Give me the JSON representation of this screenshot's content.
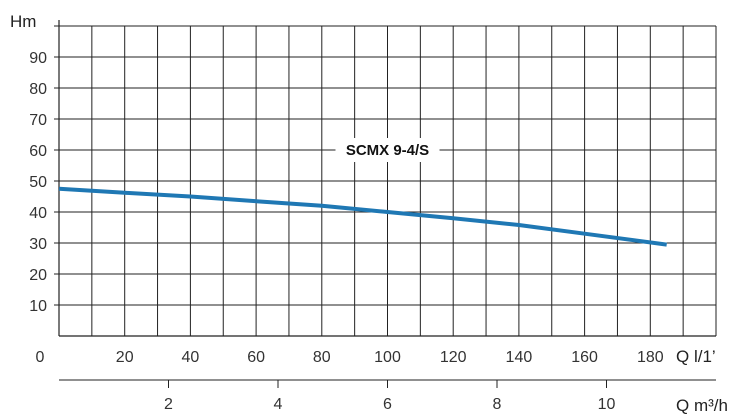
{
  "chart_data": {
    "type": "line",
    "title": "",
    "ylabel": "Hm",
    "xlabel": "Q l/1’",
    "x2label": "Q m³/h",
    "ylim": [
      0,
      100
    ],
    "xlim": [
      0,
      200
    ],
    "x2lim": [
      0,
      12
    ],
    "y_ticks": [
      10,
      20,
      30,
      40,
      50,
      60,
      70,
      80,
      90
    ],
    "x_ticks": [
      0,
      20,
      40,
      60,
      80,
      100,
      120,
      140,
      160,
      180
    ],
    "x2_ticks": [
      2,
      4,
      6,
      8,
      10
    ],
    "grid": true,
    "series": [
      {
        "name": "SCMX 9-4/S",
        "color": "#1f78b4",
        "x": [
          0,
          20,
          40,
          60,
          80,
          100,
          120,
          140,
          160,
          185
        ],
        "y": [
          47.5,
          46.2,
          45.0,
          43.5,
          42.0,
          40.0,
          38.0,
          35.8,
          33.0,
          29.5
        ]
      }
    ]
  }
}
